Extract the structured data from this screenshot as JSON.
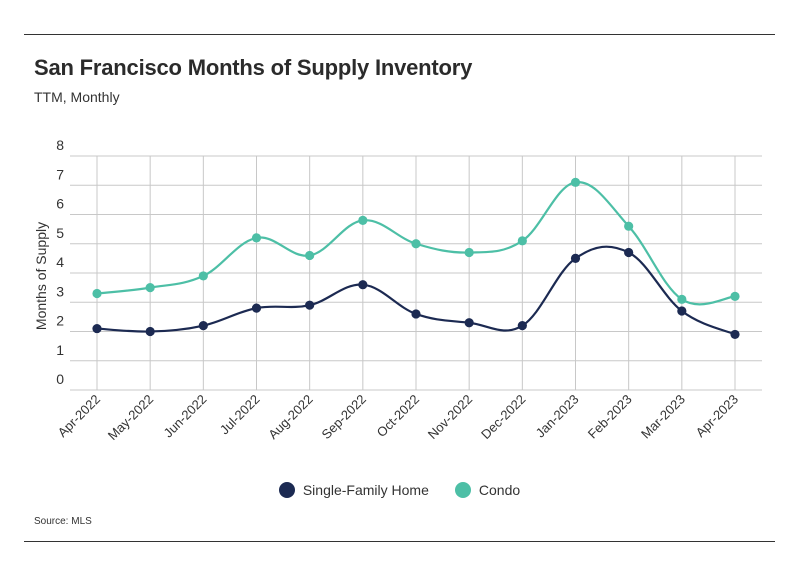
{
  "header": {
    "title": "San Francisco Months of Supply Inventory",
    "subtitle": "TTM, Monthly"
  },
  "footer": {
    "source": "Source:  MLS"
  },
  "colors": {
    "single_family": "#1c2a52",
    "condo": "#4dbfa6",
    "grid": "#c8c8c8",
    "axis_text": "#333333"
  },
  "chart_data": {
    "type": "line",
    "title": "San Francisco Months of Supply Inventory",
    "subtitle": "TTM, Monthly",
    "xlabel": "",
    "ylabel": "Months of Supply",
    "ylim": [
      0,
      8
    ],
    "yticks": [
      0,
      1,
      2,
      3,
      4,
      5,
      6,
      7,
      8
    ],
    "grid": true,
    "legend_position": "bottom-center",
    "categories": [
      "Apr-2022",
      "May-2022",
      "Jun-2022",
      "Jul-2022",
      "Aug-2022",
      "Sep-2022",
      "Oct-2022",
      "Nov-2022",
      "Dec-2022",
      "Jan-2023",
      "Feb-2023",
      "Mar-2023",
      "Apr-2023"
    ],
    "series": [
      {
        "name": "Single-Family Home",
        "color": "#1c2a52",
        "values": [
          2.1,
          2.0,
          2.2,
          2.8,
          2.9,
          3.6,
          2.6,
          2.3,
          2.2,
          4.5,
          4.7,
          2.7,
          1.9
        ]
      },
      {
        "name": "Condo",
        "color": "#4dbfa6",
        "values": [
          3.3,
          3.5,
          3.9,
          5.2,
          4.6,
          5.8,
          5.0,
          4.7,
          5.1,
          7.1,
          5.6,
          3.1,
          3.2
        ]
      }
    ]
  }
}
